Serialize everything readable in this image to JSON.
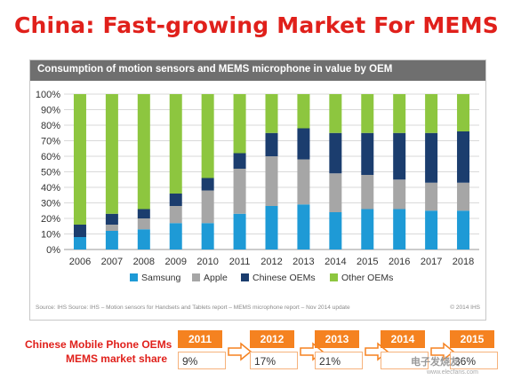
{
  "page_title": "China: Fast-growing Market For MEMS",
  "chart_data": {
    "type": "bar",
    "stacked": true,
    "title": "Consumption of motion sensors and MEMS microphone in value by OEM",
    "categories": [
      "2006",
      "2007",
      "2008",
      "2009",
      "2010",
      "2011",
      "2012",
      "2013",
      "2014",
      "2015",
      "2016",
      "2017",
      "2018"
    ],
    "series": [
      {
        "name": "Samsung",
        "color": "#1e9ad6",
        "values": [
          8,
          12,
          13,
          17,
          17,
          23,
          28,
          29,
          24,
          26,
          26,
          25,
          25
        ]
      },
      {
        "name": "Apple",
        "color": "#a6a6a6",
        "values": [
          0,
          4,
          7,
          11,
          21,
          29,
          32,
          29,
          25,
          22,
          19,
          18,
          18
        ]
      },
      {
        "name": "Chinese OEMs",
        "color": "#1b3d6e",
        "values": [
          8,
          7,
          6,
          8,
          8,
          10,
          15,
          20,
          26,
          27,
          30,
          32,
          33
        ]
      },
      {
        "name": "Other OEMs",
        "color": "#8dc63f",
        "values": [
          84,
          77,
          74,
          64,
          54,
          38,
          25,
          22,
          25,
          25,
          25,
          25,
          24
        ]
      }
    ],
    "ylim": [
      0,
      100
    ],
    "yticks": [
      "0%",
      "10%",
      "20%",
      "30%",
      "40%",
      "50%",
      "60%",
      "70%",
      "80%",
      "90%",
      "100%"
    ],
    "legend_position": "bottom",
    "grid": true,
    "source": "Source: IHS Source: IHS – Motion sensors for Handsets and Tablets report – MEMS microphone report – Nov 2014 update",
    "copyright": "© 2014 IHS"
  },
  "share_table": {
    "label_line1": "Chinese Mobile Phone OEMs",
    "label_line2": "MEMS market share",
    "years": [
      "2011",
      "2012",
      "2013",
      "2014",
      "2015"
    ],
    "shares": [
      "9%",
      "17%",
      "21%",
      "",
      "36%"
    ],
    "accent_color": "#f58220"
  },
  "watermark": {
    "text": "电子发烧友",
    "url": "www.elecfans.com"
  }
}
